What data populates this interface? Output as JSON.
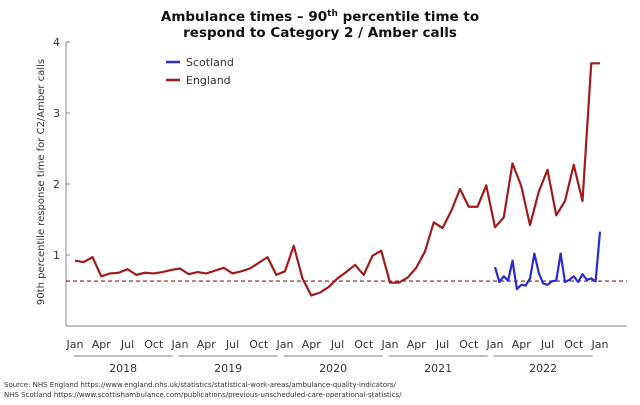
{
  "chart_data": {
    "type": "line",
    "title_line1_pre": "Ambulance times – 90",
    "title_line1_sup": "th",
    "title_line1_post": " percentile time to",
    "title_line2": "respond to Category 2 / Amber calls",
    "ylabel": "90th percentile response time for C2/Amber calls",
    "ylim": [
      0,
      4
    ],
    "yticks": [
      1,
      2,
      3,
      4
    ],
    "xlim": [
      0,
      63
    ],
    "xticks": [
      {
        "x": 0,
        "label": "Jan"
      },
      {
        "x": 3,
        "label": "Apr"
      },
      {
        "x": 6,
        "label": "Jul"
      },
      {
        "x": 9,
        "label": "Oct"
      },
      {
        "x": 12,
        "label": "Jan"
      },
      {
        "x": 15,
        "label": "Apr"
      },
      {
        "x": 18,
        "label": "Jul"
      },
      {
        "x": 21,
        "label": "Oct"
      },
      {
        "x": 24,
        "label": "Jan"
      },
      {
        "x": 27,
        "label": "Apr"
      },
      {
        "x": 30,
        "label": "Jul"
      },
      {
        "x": 33,
        "label": "Oct"
      },
      {
        "x": 36,
        "label": "Jan"
      },
      {
        "x": 39,
        "label": "Apr"
      },
      {
        "x": 42,
        "label": "Jul"
      },
      {
        "x": 45,
        "label": "Oct"
      },
      {
        "x": 48,
        "label": "Jan"
      },
      {
        "x": 51,
        "label": "Apr"
      },
      {
        "x": 54,
        "label": "Jul"
      },
      {
        "x": 57,
        "label": "Oct"
      },
      {
        "x": 60,
        "label": "Jan"
      }
    ],
    "years": [
      {
        "label": "2018",
        "start": -0.5,
        "end": 11.5
      },
      {
        "label": "2019",
        "start": 11.5,
        "end": 23.5
      },
      {
        "label": "2020",
        "start": 23.5,
        "end": 35.5
      },
      {
        "label": "2021",
        "start": 35.5,
        "end": 47.5
      },
      {
        "label": "2022",
        "start": 47.5,
        "end": 59.5
      }
    ],
    "reference_line": {
      "value": 0.633,
      "color": "#8b1a1a"
    },
    "series": [
      {
        "name": "Scotland",
        "color": "#2a2acf",
        "x": [
          48,
          48.5,
          49,
          49.5,
          50,
          50.5,
          51,
          51.5,
          52,
          52.5,
          53,
          53.5,
          54,
          54.5,
          55,
          55.5,
          56,
          56.5,
          57,
          57.5,
          58,
          58.5,
          59,
          59.5,
          60
        ],
        "values": [
          0.83,
          0.62,
          0.7,
          0.64,
          0.92,
          0.52,
          0.58,
          0.57,
          0.67,
          1.02,
          0.75,
          0.6,
          0.58,
          0.63,
          0.64,
          1.02,
          0.62,
          0.65,
          0.7,
          0.62,
          0.73,
          0.65,
          0.67,
          0.63,
          1.33
        ]
      },
      {
        "name": "England",
        "color": "#a01c1c",
        "x": [
          0,
          1,
          2,
          3,
          4,
          5,
          6,
          7,
          8,
          9,
          10,
          11,
          12,
          13,
          14,
          15,
          16,
          17,
          18,
          19,
          20,
          21,
          22,
          23,
          24,
          25,
          26,
          27,
          28,
          29,
          30,
          31,
          32,
          33,
          34,
          35,
          36,
          37,
          38,
          39,
          40,
          41,
          42,
          43,
          44,
          45,
          46,
          47,
          48,
          49,
          50,
          51,
          52,
          53,
          54,
          55,
          56,
          57,
          58,
          59,
          60
        ],
        "values": [
          0.92,
          0.9,
          0.97,
          0.7,
          0.74,
          0.75,
          0.8,
          0.72,
          0.75,
          0.74,
          0.76,
          0.79,
          0.81,
          0.73,
          0.76,
          0.74,
          0.78,
          0.82,
          0.74,
          0.77,
          0.81,
          0.89,
          0.97,
          0.72,
          0.77,
          1.13,
          0.67,
          0.43,
          0.47,
          0.55,
          0.67,
          0.76,
          0.86,
          0.72,
          0.99,
          1.06,
          0.61,
          0.61,
          0.68,
          0.82,
          1.05,
          1.46,
          1.38,
          1.62,
          1.93,
          1.68,
          1.68,
          1.98,
          1.39,
          1.53,
          2.29,
          1.97,
          1.42,
          1.89,
          2.2,
          1.56,
          1.76,
          2.27,
          1.76,
          3.7,
          3.7
        ]
      }
    ]
  },
  "source": {
    "line1": "Source: NHS England  https://www.england.nhs.uk/statistics/statistical-work-areas/ambulance-quality-indicators/",
    "line2": "NHS Scotland https://www.scottishambulance.com/publications/previous-unscheduled-care-operational-statistics/"
  }
}
